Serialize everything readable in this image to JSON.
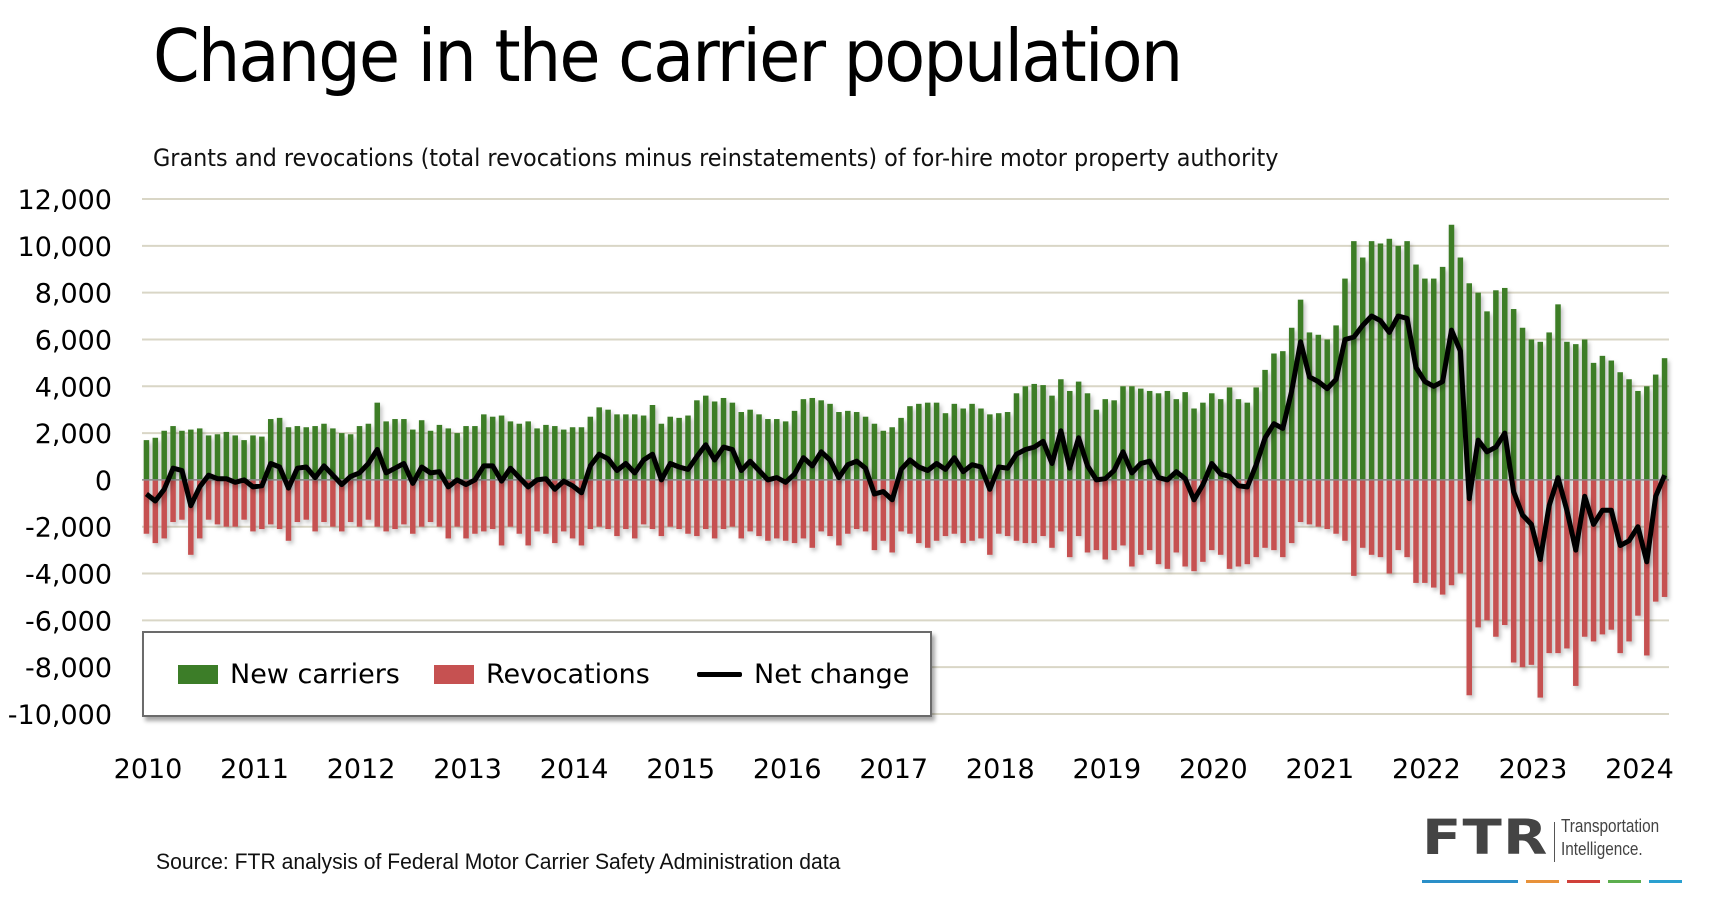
{
  "title": "Change in the carrier population",
  "subtitle": "Grants and revocations (total revocations minus reinstatements) of for-hire motor property authority",
  "source": "Source: FTR analysis of Federal Motor Carrier Safety Administration data",
  "logo": {
    "wordmark": "FTR",
    "tagline_line1": "Transportation",
    "tagline_line2": "Intelligence.",
    "underline_colors": [
      "#2a8fc8",
      "#e8923a",
      "#d0403a",
      "#5cae4e",
      "#2aa0d0"
    ]
  },
  "colors": {
    "new_carriers": "#3c7d28",
    "revocations": "#c65151",
    "net_change": "#000000",
    "gridline": "#d9d6c6"
  },
  "chart_data": {
    "type": "bar",
    "title": "Change in the carrier population",
    "subtitle": "Grants and revocations (total revocations minus reinstatements) of for-hire motor property authority",
    "xlabel": "",
    "ylabel": "",
    "ylim": [
      -10000,
      12000
    ],
    "yticks": [
      12000,
      10000,
      8000,
      6000,
      4000,
      2000,
      0,
      -2000,
      -4000,
      -6000,
      -8000,
      -10000
    ],
    "ytick_labels": [
      "12,000",
      "10,000",
      "8,000",
      "6,000",
      "4,000",
      "2,000",
      "0",
      "-2,000",
      "-4,000",
      "-6,000",
      "-8,000",
      "-10,000"
    ],
    "xtick_labels": [
      "2010",
      "2011",
      "2012",
      "2013",
      "2014",
      "2015",
      "2016",
      "2017",
      "2018",
      "2019",
      "2020",
      "2021",
      "2022",
      "2023",
      "2024"
    ],
    "x_start": "2010-01",
    "x_frequency": "monthly",
    "grid": true,
    "legend_position": "bottom-left",
    "legend": [
      "New carriers",
      "Revocations",
      "Net change"
    ],
    "series": [
      {
        "name": "New carriers",
        "type": "bar",
        "values": [
          1700,
          1800,
          2100,
          2300,
          2100,
          2150,
          2200,
          1900,
          1950,
          2050,
          1900,
          1700,
          1900,
          1850,
          2600,
          2650,
          2250,
          2300,
          2250,
          2300,
          2400,
          2200,
          2000,
          1950,
          2300,
          2400,
          3300,
          2500,
          2600,
          2600,
          2150,
          2550,
          2100,
          2350,
          2200,
          2000,
          2300,
          2300,
          2800,
          2700,
          2750,
          2500,
          2400,
          2500,
          2200,
          2350,
          2300,
          2150,
          2250,
          2250,
          2700,
          3100,
          3000,
          2800,
          2800,
          2800,
          2750,
          3200,
          2400,
          2700,
          2650,
          2750,
          3400,
          3600,
          3350,
          3500,
          3300,
          2900,
          3000,
          2800,
          2600,
          2600,
          2500,
          2950,
          3450,
          3500,
          3400,
          3250,
          2900,
          2950,
          2900,
          2700,
          2400,
          2100,
          2250,
          2650,
          3150,
          3250,
          3300,
          3300,
          2850,
          3250,
          3050,
          3250,
          3050,
          2800,
          2850,
          2900,
          3700,
          4000,
          4100,
          4050,
          3600,
          4300,
          3800,
          4200,
          3700,
          3000,
          3450,
          3400,
          4000,
          4000,
          3900,
          3800,
          3700,
          3800,
          3450,
          3750,
          3050,
          3300,
          3700,
          3450,
          3950,
          3450,
          3300,
          3950,
          4700,
          5400,
          5500,
          6500,
          7700,
          6300,
          6200,
          6000,
          6600,
          8600,
          10200,
          9500,
          10200,
          10100,
          10300,
          10000,
          10200,
          9200,
          8600,
          8600,
          9100,
          10900,
          9500,
          8400,
          8000,
          7200,
          8100,
          8200,
          7300,
          6500,
          6000,
          5900,
          6300,
          7500,
          5900,
          5800,
          6000,
          5000,
          5300,
          5100,
          4600,
          4300,
          3800,
          4000,
          4500,
          5200
        ]
      },
      {
        "name": "Revocations",
        "type": "bar",
        "values": [
          -2300,
          -2700,
          -2500,
          -1800,
          -1700,
          -3200,
          -2500,
          -1700,
          -1900,
          -2000,
          -2000,
          -1700,
          -2200,
          -2100,
          -1900,
          -2100,
          -2600,
          -1800,
          -1700,
          -2200,
          -1800,
          -2000,
          -2200,
          -1800,
          -2000,
          -1700,
          -2000,
          -2200,
          -2100,
          -1900,
          -2300,
          -2000,
          -1800,
          -2000,
          -2500,
          -2000,
          -2500,
          -2300,
          -2200,
          -2100,
          -2800,
          -2000,
          -2300,
          -2800,
          -2200,
          -2300,
          -2700,
          -2200,
          -2500,
          -2800,
          -2100,
          -2000,
          -2100,
          -2400,
          -2100,
          -2500,
          -1900,
          -2100,
          -2400,
          -2000,
          -2100,
          -2300,
          -2400,
          -2100,
          -2500,
          -2100,
          -2000,
          -2500,
          -2200,
          -2400,
          -2600,
          -2500,
          -2600,
          -2700,
          -2500,
          -2900,
          -2200,
          -2400,
          -2800,
          -2300,
          -2100,
          -2200,
          -3000,
          -2600,
          -3100,
          -2200,
          -2300,
          -2700,
          -2900,
          -2600,
          -2400,
          -2300,
          -2700,
          -2600,
          -2500,
          -3200,
          -2300,
          -2400,
          -2600,
          -2700,
          -2700,
          -2400,
          -2900,
          -2200,
          -3300,
          -2400,
          -3100,
          -3000,
          -3400,
          -3000,
          -2800,
          -3700,
          -3200,
          -3000,
          -3600,
          -3800,
          -3100,
          -3700,
          -3900,
          -3500,
          -3000,
          -3200,
          -3800,
          -3700,
          -3600,
          -3300,
          -2900,
          -3000,
          -3300,
          -2700,
          -1800,
          -1900,
          -2000,
          -2100,
          -2300,
          -2600,
          -4100,
          -2900,
          -3200,
          -3300,
          -4000,
          -3000,
          -3300,
          -4400,
          -4400,
          -4600,
          -4900,
          -4500,
          -4000,
          -9200,
          -6300,
          -6000,
          -6700,
          -6200,
          -7800,
          -8000,
          -7900,
          -9300,
          -7400,
          -7400,
          -7200,
          -8800,
          -6700,
          -6900,
          -6600,
          -6400,
          -7400,
          -6900,
          -5800,
          -7500,
          -5200,
          -5000
        ]
      },
      {
        "name": "Net change",
        "type": "line",
        "values": [
          -600,
          -900,
          -400,
          500,
          400,
          -1100,
          -300,
          200,
          50,
          50,
          -100,
          0,
          -300,
          -250,
          700,
          550,
          -350,
          500,
          550,
          100,
          600,
          200,
          -200,
          150,
          300,
          700,
          1300,
          300,
          500,
          700,
          -150,
          550,
          300,
          350,
          -300,
          0,
          -200,
          0,
          600,
          600,
          -50,
          500,
          100,
          -300,
          0,
          50,
          -400,
          -50,
          -250,
          -550,
          600,
          1100,
          900,
          400,
          700,
          300,
          850,
          1100,
          0,
          700,
          550,
          450,
          1000,
          1500,
          850,
          1400,
          1300,
          400,
          800,
          400,
          0,
          100,
          -100,
          250,
          950,
          600,
          1200,
          850,
          100,
          650,
          800,
          500,
          -600,
          -500,
          -850,
          450,
          850,
          550,
          400,
          700,
          450,
          950,
          350,
          650,
          550,
          -400,
          550,
          500,
          1100,
          1300,
          1400,
          1650,
          700,
          2100,
          500,
          1800,
          600,
          0,
          50,
          400,
          1200,
          300,
          700,
          800,
          100,
          0,
          350,
          50,
          -850,
          -200,
          700,
          250,
          150,
          -250,
          -300,
          650,
          1800,
          2400,
          2200,
          3800,
          5900,
          4400,
          4200,
          3900,
          4300,
          6000,
          6100,
          6600,
          7000,
          6800,
          6300,
          7000,
          6900,
          4800,
          4200,
          4000,
          4200,
          6400,
          5500,
          -800,
          1700,
          1200,
          1400,
          2000,
          -500,
          -1500,
          -1900,
          -3400,
          -1100,
          100,
          -1300,
          -3000,
          -700,
          -1900,
          -1300,
          -1300,
          -2800,
          -2600,
          -2000,
          -3500,
          -700,
          200
        ]
      }
    ]
  }
}
